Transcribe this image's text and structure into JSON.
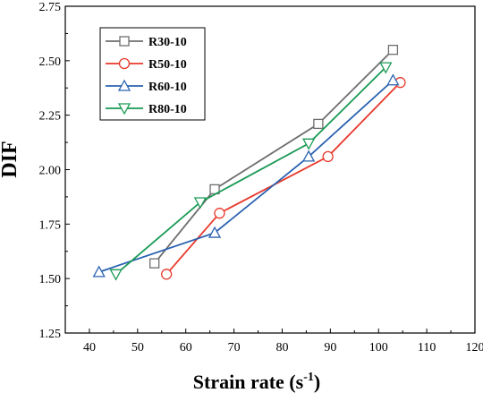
{
  "chart_data": {
    "type": "line",
    "title": "",
    "xlabel": "Strain rate (s",
    "xlabel_sup": "-1",
    "xlabel_close": ")",
    "ylabel": "DIF",
    "xlim": [
      35,
      120
    ],
    "ylim": [
      1.25,
      2.75
    ],
    "x_ticks": [
      "40",
      "50",
      "60",
      "70",
      "80",
      "90",
      "100",
      "110",
      "120"
    ],
    "y_ticks": [
      "1.25",
      "1.50",
      "1.75",
      "2.00",
      "2.25",
      "2.50",
      "2.75"
    ],
    "grid": false,
    "legend_position": "top-left",
    "series": [
      {
        "name": "R30-10",
        "color": "#6e6e6e",
        "marker": "square",
        "points": [
          [
            53.5,
            1.57
          ],
          [
            66,
            1.91
          ],
          [
            87.5,
            2.21
          ],
          [
            103,
            2.55
          ]
        ]
      },
      {
        "name": "R50-10",
        "color": "#e8392c",
        "marker": "circle",
        "points": [
          [
            56,
            1.52
          ],
          [
            67,
            1.8
          ],
          [
            89.5,
            2.06
          ],
          [
            104.5,
            2.4
          ]
        ]
      },
      {
        "name": "R60-10",
        "color": "#2a62b0",
        "marker": "triangle-up",
        "points": [
          [
            42,
            1.53
          ],
          [
            66,
            1.71
          ],
          [
            85.5,
            2.06
          ],
          [
            103,
            2.41
          ]
        ]
      },
      {
        "name": "R80-10",
        "color": "#1a9a55",
        "marker": "triangle-down",
        "points": [
          [
            45.5,
            1.52
          ],
          [
            63,
            1.85
          ],
          [
            85.5,
            2.12
          ],
          [
            101.5,
            2.47
          ]
        ]
      }
    ]
  }
}
